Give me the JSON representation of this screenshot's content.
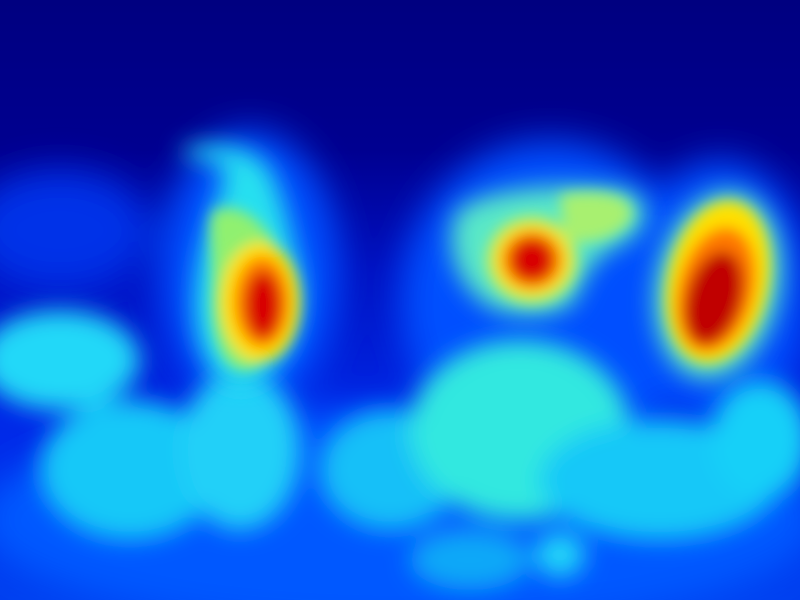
{
  "colors": {
    "background": "#000080",
    "deep_blue": "#0018d8",
    "blue": "#0048ff",
    "cyan": "#18d8f8",
    "aqua": "#00ffff",
    "green": "#7af07a",
    "yellow": "#ffe000",
    "orange": "#ff8000",
    "red": "#e80000",
    "dark_red": "#b00000"
  }
}
